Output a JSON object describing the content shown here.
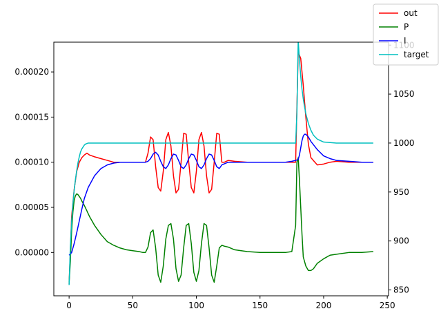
{
  "chart_data": {
    "type": "line",
    "title": "",
    "xlabel": "",
    "ylabel": "",
    "xlim": [
      -12,
      251
    ],
    "ylim": [
      -4.8e-05,
      0.000233
    ],
    "y2lim": [
      844,
      1103
    ],
    "grid": false,
    "legend_position": "top-right",
    "x_ticks": [
      0,
      50,
      100,
      150,
      200,
      250
    ],
    "x_tick_labels": [
      "0",
      "50",
      "100",
      "150",
      "200",
      "250"
    ],
    "y_ticks": [
      0,
      5e-05,
      0.0001,
      0.00015,
      0.0002
    ],
    "y_tick_labels": [
      "0.00000",
      "0.00005",
      "0.00010",
      "0.00015",
      "0.00020"
    ],
    "y2_ticks": [
      850,
      900,
      950,
      1000,
      1050,
      1100
    ],
    "y2_tick_labels": [
      "850",
      "900",
      "950",
      "1000",
      "1050",
      "1100"
    ],
    "series": [
      {
        "name": "out",
        "color": "#ff0000",
        "axis": "left",
        "x": [
          0,
          2,
          4,
          6,
          8,
          10,
          12,
          14,
          16,
          18,
          20,
          25,
          30,
          35,
          40,
          45,
          50,
          55,
          60,
          62,
          64,
          66,
          68,
          70,
          72,
          74,
          76,
          78,
          80,
          82,
          84,
          86,
          88,
          90,
          92,
          94,
          96,
          98,
          100,
          102,
          104,
          106,
          108,
          110,
          112,
          114,
          116,
          118,
          120,
          122,
          125,
          130,
          140,
          150,
          160,
          170,
          175,
          178,
          180,
          182,
          184,
          186,
          188,
          190,
          195,
          200,
          205,
          210,
          220,
          230,
          239
        ],
        "y": [
          -3.5e-05,
          4e-05,
          7e-05,
          9e-05,
          0.0001,
          0.000105,
          0.000108,
          0.00011,
          0.000108,
          0.000107,
          0.000106,
          0.000104,
          0.000102,
          0.0001,
          0.0001,
          0.0001,
          0.0001,
          0.0001,
          0.0001,
          0.00011,
          0.000128,
          0.000125,
          9.5e-05,
          7.2e-05,
          6.8e-05,
          9e-05,
          0.000125,
          0.000133,
          0.000118,
          8.5e-05,
          6.6e-05,
          7e-05,
          0.0001,
          0.000132,
          0.000131,
          0.0001,
          7.2e-05,
          6.6e-05,
          9e-05,
          0.000125,
          0.000133,
          0.000118,
          8.5e-05,
          6.6e-05,
          7e-05,
          0.0001,
          0.000132,
          0.000131,
          0.0001,
          0.0001,
          0.000102,
          0.000101,
          0.0001,
          0.0001,
          0.0001,
          0.0001,
          0.0001,
          0.0001,
          0.000222,
          0.000215,
          0.000185,
          0.00015,
          0.00012,
          0.000105,
          9.7e-05,
          9.8e-05,
          0.0001,
          0.000101,
          0.0001,
          0.0001,
          0.0001
        ]
      },
      {
        "name": "P",
        "color": "#008000",
        "axis": "left",
        "x": [
          0,
          1,
          2,
          3,
          4,
          5,
          6,
          7,
          8,
          9,
          10,
          12,
          14,
          16,
          18,
          20,
          22,
          25,
          30,
          35,
          40,
          45,
          50,
          55,
          58,
          60,
          62,
          64,
          66,
          68,
          70,
          72,
          74,
          76,
          78,
          80,
          82,
          84,
          86,
          88,
          90,
          92,
          94,
          96,
          98,
          100,
          102,
          104,
          106,
          108,
          110,
          112,
          114,
          116,
          118,
          120,
          122,
          125,
          130,
          140,
          150,
          160,
          170,
          175,
          178,
          179,
          180,
          181,
          182,
          183,
          184,
          186,
          188,
          190,
          192,
          195,
          200,
          205,
          210,
          220,
          230,
          239
        ],
        "y": [
          -3.3e-05,
          -1e-05,
          2.5e-05,
          4.5e-05,
          5.8e-05,
          6.3e-05,
          6.5e-05,
          6.4e-05,
          6.2e-05,
          6e-05,
          5.7e-05,
          5.2e-05,
          4.6e-05,
          4e-05,
          3.5e-05,
          3e-05,
          2.6e-05,
          2e-05,
          1.2e-05,
          8e-06,
          5e-06,
          3e-06,
          2e-06,
          1e-06,
          0.0,
          0.0,
          6e-06,
          2.2e-05,
          2.5e-05,
          5e-06,
          -2.5e-05,
          -3.3e-05,
          -1.5e-05,
          1.5e-05,
          3e-05,
          3.2e-05,
          1.5e-05,
          -1.8e-05,
          -3.2e-05,
          -2.5e-05,
          5e-06,
          3e-05,
          3.2e-05,
          1e-05,
          -2.2e-05,
          -3.2e-05,
          -2e-05,
          1e-05,
          3.2e-05,
          3e-05,
          5e-06,
          -2.5e-05,
          -3.3e-05,
          -1.5e-05,
          5e-06,
          8e-06,
          7e-06,
          6e-06,
          3e-06,
          1e-06,
          0.0,
          0.0,
          0.0,
          1e-06,
          3e-05,
          0.0001,
          0.000105,
          8e-05,
          5e-05,
          2e-05,
          -5e-06,
          -1.5e-05,
          -2e-05,
          -2e-05,
          -1.8e-05,
          -1.2e-05,
          -7e-06,
          -3e-06,
          -2e-06,
          0.0,
          0.0,
          1e-06
        ]
      },
      {
        "name": "I",
        "color": "#0000ff",
        "axis": "left",
        "x": [
          0,
          2,
          4,
          6,
          8,
          10,
          12,
          15,
          20,
          25,
          30,
          35,
          40,
          45,
          50,
          55,
          60,
          62,
          64,
          66,
          68,
          70,
          72,
          74,
          76,
          78,
          80,
          82,
          84,
          86,
          88,
          90,
          92,
          94,
          96,
          98,
          100,
          102,
          104,
          106,
          108,
          110,
          112,
          114,
          116,
          118,
          120,
          125,
          130,
          140,
          150,
          160,
          170,
          175,
          178,
          180,
          181,
          182,
          183,
          184,
          185,
          186,
          188,
          190,
          195,
          200,
          205,
          210,
          220,
          230,
          239
        ],
        "y": [
          -3e-06,
          0.0,
          1e-05,
          2.2e-05,
          3.5e-05,
          4.8e-05,
          6e-05,
          7.2e-05,
          8.5e-05,
          9.3e-05,
          9.7e-05,
          9.9e-05,
          0.0001,
          0.0001,
          0.0001,
          0.0001,
          0.0001,
          0.000101,
          0.000104,
          0.000109,
          0.000111,
          0.000108,
          0.000101,
          9.5e-05,
          9.3e-05,
          9.7e-05,
          0.000104,
          0.000109,
          0.000108,
          0.000102,
          9.5e-05,
          9.3e-05,
          9.7e-05,
          0.000104,
          0.000109,
          0.000108,
          0.000102,
          9.5e-05,
          9.3e-05,
          9.7e-05,
          0.000104,
          0.000109,
          0.000108,
          0.000102,
          9.5e-05,
          9.3e-05,
          9.7e-05,
          0.0001,
          0.0001,
          0.0001,
          0.0001,
          0.0001,
          0.0001,
          0.000101,
          0.000102,
          0.000103,
          0.000108,
          0.000116,
          0.000124,
          0.000129,
          0.000131,
          0.000131,
          0.000128,
          0.000123,
          0.000114,
          0.000107,
          0.000104,
          0.000102,
          0.000101,
          0.0001,
          0.0001
        ]
      },
      {
        "name": "target",
        "color": "#00bfbf",
        "axis": "right",
        "x": [
          0,
          1,
          2,
          3,
          4,
          5,
          6,
          7,
          8,
          9,
          10,
          11,
          12,
          13,
          14,
          15,
          16,
          18,
          20,
          30,
          60,
          100,
          150,
          175,
          178,
          179,
          180,
          181,
          182,
          183,
          184,
          185,
          186,
          188,
          190,
          192,
          195,
          200,
          210,
          220,
          239
        ],
        "y": [
          855,
          895,
          920,
          938,
          952,
          963,
          972,
          980,
          986,
          991,
          994,
          996,
          998,
          999,
          999.5,
          1000,
          1000,
          1000,
          1000,
          1000,
          1000,
          1000,
          1000,
          1000,
          1000,
          1030,
          1105,
          1085,
          1068,
          1055,
          1045,
          1037,
          1030,
          1020,
          1013,
          1008,
          1004,
          1001,
          1000,
          1000,
          1000
        ]
      }
    ]
  }
}
